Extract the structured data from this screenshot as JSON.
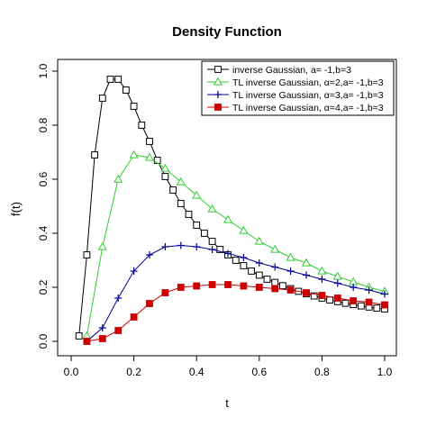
{
  "chart_data": {
    "type": "line",
    "title": "Density Function",
    "xlabel": "t",
    "ylabel": "f(t)",
    "xlim": [
      0.0,
      1.0
    ],
    "ylim": [
      0.0,
      1.0
    ],
    "xticks": [
      "0.0",
      "0.2",
      "0.4",
      "0.6",
      "0.8",
      "1.0"
    ],
    "yticks": [
      "0.0",
      "0.2",
      "0.4",
      "0.6",
      "0.8",
      "1.0"
    ],
    "grid": false,
    "legend_position": "top-right",
    "series": [
      {
        "name": "inverse Gaussian, a= -1,b=3",
        "color": "#000000",
        "marker": "open-square",
        "x": [
          0.025,
          0.05,
          0.075,
          0.1,
          0.125,
          0.15,
          0.175,
          0.2,
          0.225,
          0.25,
          0.275,
          0.3,
          0.325,
          0.35,
          0.375,
          0.4,
          0.425,
          0.45,
          0.475,
          0.5,
          0.525,
          0.55,
          0.575,
          0.6,
          0.625,
          0.65,
          0.675,
          0.7,
          0.725,
          0.75,
          0.775,
          0.8,
          0.825,
          0.85,
          0.875,
          0.9,
          0.925,
          0.95,
          0.975,
          1.0
        ],
        "y": [
          0.02,
          0.32,
          0.69,
          0.9,
          0.97,
          0.97,
          0.93,
          0.87,
          0.8,
          0.74,
          0.67,
          0.61,
          0.56,
          0.51,
          0.47,
          0.43,
          0.4,
          0.37,
          0.34,
          0.32,
          0.3,
          0.28,
          0.26,
          0.245,
          0.23,
          0.218,
          0.206,
          0.195,
          0.185,
          0.176,
          0.168,
          0.16,
          0.153,
          0.147,
          0.141,
          0.136,
          0.131,
          0.127,
          0.123,
          0.12
        ]
      },
      {
        "name": "TL inverse Gaussian, α=2,a= -1,b=3",
        "color": "#33cc33",
        "marker": "open-triangle",
        "x": [
          0.05,
          0.1,
          0.15,
          0.2,
          0.25,
          0.3,
          0.35,
          0.4,
          0.45,
          0.5,
          0.55,
          0.6,
          0.65,
          0.7,
          0.75,
          0.8,
          0.85,
          0.9,
          0.95,
          1.0
        ],
        "y": [
          0.02,
          0.35,
          0.6,
          0.69,
          0.68,
          0.64,
          0.59,
          0.54,
          0.49,
          0.45,
          0.41,
          0.37,
          0.34,
          0.31,
          0.29,
          0.26,
          0.24,
          0.22,
          0.2,
          0.185
        ]
      },
      {
        "name": "TL inverse Gaussian, α=3,a= -1,b=3",
        "color": "#000099",
        "marker": "plus",
        "x": [
          0.05,
          0.1,
          0.15,
          0.2,
          0.25,
          0.3,
          0.35,
          0.4,
          0.45,
          0.5,
          0.55,
          0.6,
          0.65,
          0.7,
          0.75,
          0.8,
          0.85,
          0.9,
          0.95,
          1.0
        ],
        "y": [
          0.0,
          0.05,
          0.16,
          0.26,
          0.32,
          0.35,
          0.355,
          0.35,
          0.34,
          0.325,
          0.31,
          0.29,
          0.275,
          0.26,
          0.245,
          0.23,
          0.215,
          0.2,
          0.19,
          0.175
        ]
      },
      {
        "name": "TL inverse Gaussian, α=4,a= -1,b=3",
        "color": "#cc0000",
        "marker": "filled-square",
        "x": [
          0.05,
          0.1,
          0.15,
          0.2,
          0.25,
          0.3,
          0.35,
          0.4,
          0.45,
          0.5,
          0.55,
          0.6,
          0.65,
          0.7,
          0.75,
          0.8,
          0.85,
          0.9,
          0.95,
          1.0
        ],
        "y": [
          0.0,
          0.01,
          0.04,
          0.09,
          0.14,
          0.18,
          0.2,
          0.205,
          0.21,
          0.21,
          0.205,
          0.2,
          0.195,
          0.19,
          0.18,
          0.17,
          0.16,
          0.15,
          0.145,
          0.135
        ]
      }
    ]
  }
}
